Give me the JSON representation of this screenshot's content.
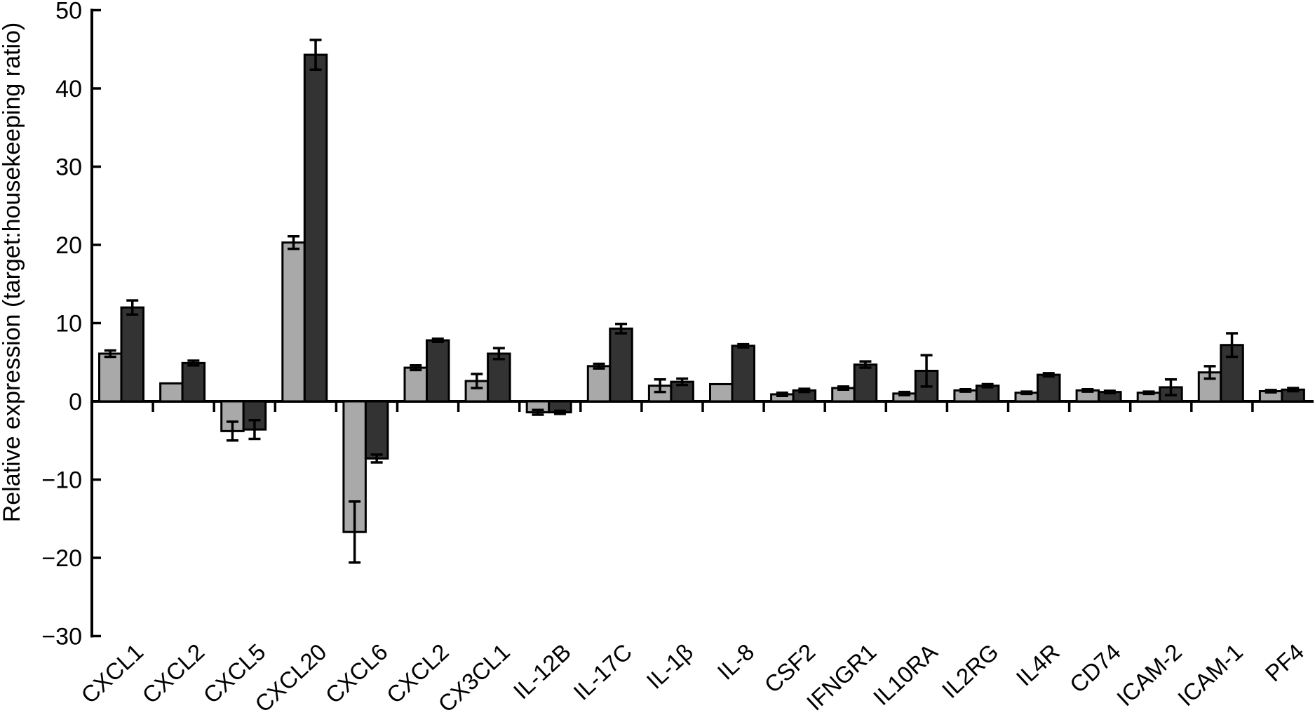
{
  "chart_data": {
    "type": "bar",
    "title": "",
    "xlabel": "",
    "ylabel": "Relative expression (target:housekeeping ratio)",
    "ylim": [
      -30,
      50
    ],
    "yticks": [
      50,
      40,
      30,
      20,
      10,
      0,
      -10,
      -20,
      -30
    ],
    "grid": false,
    "legend_position": "none",
    "error_bars": true,
    "categories": [
      "CXCL1",
      "CXCL2",
      "CXCL5",
      "CXCL20",
      "CXCL6",
      "CXCL2",
      "CX3CL1",
      "IL-12B",
      "IL-17C",
      "IL-1β",
      "IL-8",
      "CSF2",
      "IFNGR1",
      "IL10RA",
      "IL2RG",
      "IL4R",
      "CD74",
      "ICAM-2",
      "ICAM-1",
      "PF4"
    ],
    "series": [
      {
        "name": "light-gray-bars",
        "color": "#a9a9a9",
        "values": [
          6.1,
          2.3,
          -3.8,
          20.3,
          -16.7,
          4.3,
          2.6,
          -1.4,
          4.5,
          2.0,
          2.2,
          0.9,
          1.7,
          1.0,
          1.4,
          1.1,
          1.4,
          1.1,
          3.7,
          1.3
        ],
        "errors": [
          0.4,
          0,
          1.2,
          0.8,
          3.9,
          0.3,
          0.9,
          0.3,
          0.3,
          0.8,
          0,
          0.2,
          0.2,
          0.2,
          0.15,
          0.15,
          0.15,
          0.15,
          0.8,
          0.15
        ]
      },
      {
        "name": "dark-gray-bars",
        "color": "#333333",
        "values": [
          12.0,
          4.9,
          -3.6,
          44.3,
          -7.3,
          7.8,
          6.1,
          -1.4,
          9.3,
          2.5,
          7.1,
          1.4,
          4.7,
          3.9,
          2.0,
          3.4,
          1.2,
          1.8,
          7.2,
          1.5
        ],
        "errors": [
          0.9,
          0.3,
          1.2,
          1.9,
          0.5,
          0.2,
          0.7,
          0.2,
          0.6,
          0.4,
          0.2,
          0.2,
          0.4,
          2.0,
          0.2,
          0.2,
          0.15,
          1.0,
          1.5,
          0.2
        ]
      }
    ],
    "colors": {
      "bar_outline": "#000000",
      "axis": "#000000",
      "background": "#ffffff"
    }
  }
}
